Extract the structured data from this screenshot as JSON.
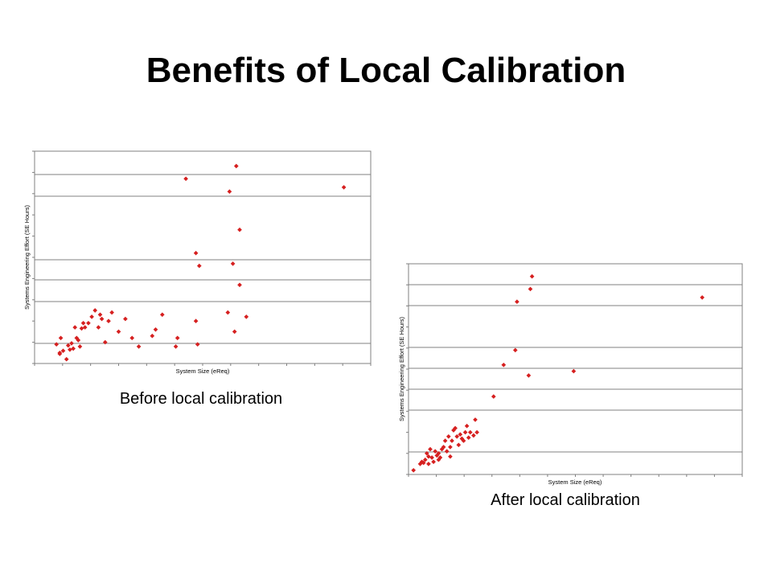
{
  "slide": {
    "title": "Benefits of Local Calibration"
  },
  "captions": {
    "before": "Before local calibration",
    "after": "After local calibration"
  },
  "colors": {
    "marker": "#d62020",
    "axis": "#808080",
    "text": "#000000"
  },
  "chart_data": [
    {
      "type": "scatter",
      "xlabel": "System Size (eReq)",
      "ylabel": "Systems Engineering Effort (SE Hours)",
      "caption": "Before local calibration",
      "grid": true,
      "xlim": [
        0,
        1
      ],
      "ylim": [
        0,
        1
      ],
      "points": [
        [
          0.065,
          0.09
        ],
        [
          0.075,
          0.05
        ],
        [
          0.078,
          0.12
        ],
        [
          0.085,
          0.06
        ],
        [
          0.075,
          0.045
        ],
        [
          0.095,
          0.02
        ],
        [
          0.1,
          0.085
        ],
        [
          0.105,
          0.065
        ],
        [
          0.11,
          0.095
        ],
        [
          0.115,
          0.07
        ],
        [
          0.12,
          0.17
        ],
        [
          0.125,
          0.12
        ],
        [
          0.13,
          0.11
        ],
        [
          0.135,
          0.08
        ],
        [
          0.14,
          0.165
        ],
        [
          0.145,
          0.19
        ],
        [
          0.15,
          0.17
        ],
        [
          0.16,
          0.19
        ],
        [
          0.17,
          0.22
        ],
        [
          0.18,
          0.25
        ],
        [
          0.19,
          0.17
        ],
        [
          0.195,
          0.23
        ],
        [
          0.2,
          0.21
        ],
        [
          0.21,
          0.1
        ],
        [
          0.22,
          0.2
        ],
        [
          0.23,
          0.24
        ],
        [
          0.25,
          0.15
        ],
        [
          0.27,
          0.21
        ],
        [
          0.29,
          0.12
        ],
        [
          0.31,
          0.08
        ],
        [
          0.35,
          0.13
        ],
        [
          0.36,
          0.16
        ],
        [
          0.38,
          0.23
        ],
        [
          0.42,
          0.08
        ],
        [
          0.425,
          0.12
        ],
        [
          0.45,
          0.87
        ],
        [
          0.48,
          0.52
        ],
        [
          0.49,
          0.46
        ],
        [
          0.48,
          0.2
        ],
        [
          0.485,
          0.09
        ],
        [
          0.575,
          0.24
        ],
        [
          0.58,
          0.81
        ],
        [
          0.59,
          0.47
        ],
        [
          0.595,
          0.15
        ],
        [
          0.6,
          0.93
        ],
        [
          0.61,
          0.63
        ],
        [
          0.61,
          0.37
        ],
        [
          0.63,
          0.22
        ],
        [
          0.92,
          0.83
        ]
      ]
    },
    {
      "type": "scatter",
      "xlabel": "System Size (eReq)",
      "ylabel": "Systems Engineering Effort (SE Hours)",
      "caption": "After local calibration",
      "grid": true,
      "xlim": [
        0,
        1
      ],
      "ylim": [
        0,
        1
      ],
      "points": [
        [
          0.015,
          0.02
        ],
        [
          0.035,
          0.05
        ],
        [
          0.04,
          0.06
        ],
        [
          0.045,
          0.055
        ],
        [
          0.05,
          0.07
        ],
        [
          0.055,
          0.1
        ],
        [
          0.06,
          0.085
        ],
        [
          0.06,
          0.05
        ],
        [
          0.065,
          0.12
        ],
        [
          0.07,
          0.08
        ],
        [
          0.075,
          0.06
        ],
        [
          0.08,
          0.11
        ],
        [
          0.085,
          0.09
        ],
        [
          0.09,
          0.1
        ],
        [
          0.09,
          0.07
        ],
        [
          0.095,
          0.08
        ],
        [
          0.1,
          0.12
        ],
        [
          0.105,
          0.13
        ],
        [
          0.11,
          0.16
        ],
        [
          0.115,
          0.11
        ],
        [
          0.12,
          0.18
        ],
        [
          0.125,
          0.13
        ],
        [
          0.125,
          0.085
        ],
        [
          0.13,
          0.16
        ],
        [
          0.135,
          0.21
        ],
        [
          0.14,
          0.22
        ],
        [
          0.145,
          0.18
        ],
        [
          0.15,
          0.14
        ],
        [
          0.155,
          0.19
        ],
        [
          0.16,
          0.17
        ],
        [
          0.165,
          0.16
        ],
        [
          0.17,
          0.2
        ],
        [
          0.175,
          0.23
        ],
        [
          0.18,
          0.175
        ],
        [
          0.185,
          0.2
        ],
        [
          0.195,
          0.185
        ],
        [
          0.2,
          0.26
        ],
        [
          0.205,
          0.2
        ],
        [
          0.255,
          0.37
        ],
        [
          0.285,
          0.52
        ],
        [
          0.32,
          0.59
        ],
        [
          0.325,
          0.82
        ],
        [
          0.36,
          0.47
        ],
        [
          0.365,
          0.88
        ],
        [
          0.37,
          0.94
        ],
        [
          0.495,
          0.49
        ],
        [
          0.88,
          0.84
        ]
      ]
    }
  ]
}
